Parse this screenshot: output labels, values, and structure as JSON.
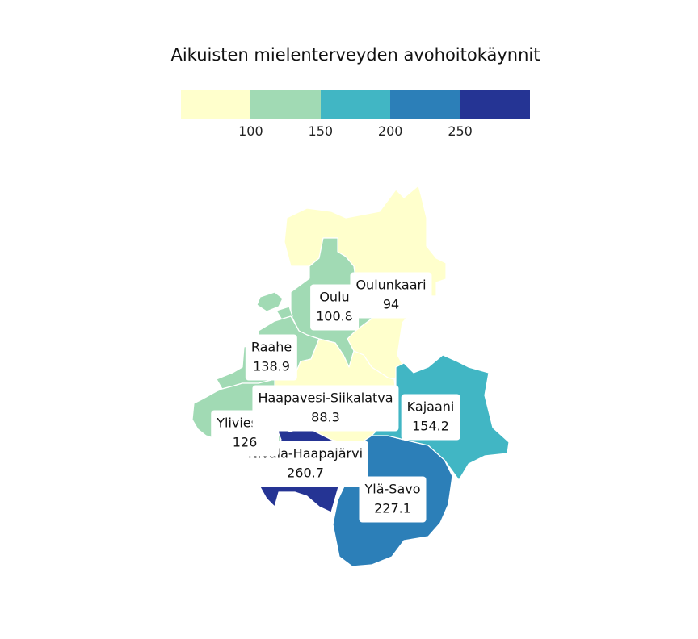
{
  "title": "Aikuisten mielenterveyden avohoitokäynnit",
  "legend": {
    "colors": [
      "#ffffcc",
      "#a1dab4",
      "#41b6c4",
      "#2c7fb8",
      "#253494"
    ],
    "ticks": [
      "100",
      "150",
      "200",
      "250"
    ],
    "breaks": [
      100,
      150,
      200,
      250
    ]
  },
  "regions": [
    {
      "name": "Oulunkaari",
      "value": "94",
      "color": "#ffffcc"
    },
    {
      "name": "Oulu",
      "value": "100.8",
      "color": "#a1dab4"
    },
    {
      "name": "Raahe",
      "value": "138.9",
      "color": "#a1dab4"
    },
    {
      "name": "Haapavesi-Siikalatva",
      "value": "88.3",
      "color": "#ffffcc"
    },
    {
      "name": "Kajaani",
      "value": "154.2",
      "color": "#41b6c4"
    },
    {
      "name": "Ylivieska",
      "value": "126",
      "color": "#a1dab4"
    },
    {
      "name": "Nivala-Haapajärvi",
      "value": "260.7",
      "color": "#253494"
    },
    {
      "name": "Ylä-Savo",
      "value": "227.1",
      "color": "#2c7fb8"
    }
  ]
}
